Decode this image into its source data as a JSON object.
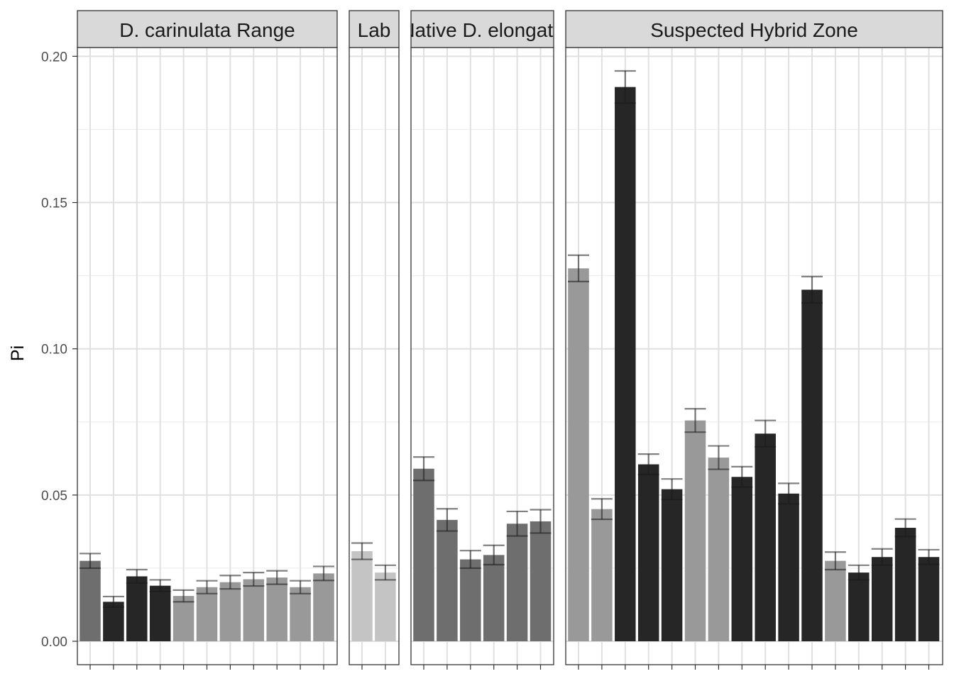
{
  "chart_data": {
    "type": "bar",
    "ylabel": "Pi",
    "ylim": [
      -0.008,
      0.203
    ],
    "yticks": [
      0.0,
      0.05,
      0.1,
      0.15,
      0.2
    ],
    "ytick_labels": [
      "0.00",
      "0.05",
      "0.10",
      "0.15",
      "0.20"
    ],
    "grid": true,
    "error_bars": true,
    "x_tick_labels_visible": false,
    "colors": {
      "black": "#262626",
      "dark_gray": "#6e6e6e",
      "medium_gray": "#999999",
      "light_gray": "#c4c4c4"
    },
    "facets": [
      {
        "label": "D. carinulata Range",
        "bars": [
          {
            "value": 0.0275,
            "err": 0.0025,
            "shade": "dark_gray"
          },
          {
            "value": 0.0135,
            "err": 0.0018,
            "shade": "black"
          },
          {
            "value": 0.0222,
            "err": 0.0023,
            "shade": "black"
          },
          {
            "value": 0.019,
            "err": 0.002,
            "shade": "black"
          },
          {
            "value": 0.0155,
            "err": 0.002,
            "shade": "medium_gray"
          },
          {
            "value": 0.0185,
            "err": 0.0022,
            "shade": "medium_gray"
          },
          {
            "value": 0.0202,
            "err": 0.0023,
            "shade": "medium_gray"
          },
          {
            "value": 0.0212,
            "err": 0.0023,
            "shade": "medium_gray"
          },
          {
            "value": 0.0218,
            "err": 0.0023,
            "shade": "medium_gray"
          },
          {
            "value": 0.0185,
            "err": 0.0022,
            "shade": "medium_gray"
          },
          {
            "value": 0.0232,
            "err": 0.0024,
            "shade": "medium_gray"
          }
        ]
      },
      {
        "label": "Lab",
        "bars": [
          {
            "value": 0.0308,
            "err": 0.0028,
            "shade": "light_gray"
          },
          {
            "value": 0.0235,
            "err": 0.0025,
            "shade": "light_gray"
          }
        ]
      },
      {
        "label": "Native D. elongata",
        "bars": [
          {
            "value": 0.059,
            "err": 0.004,
            "shade": "dark_gray"
          },
          {
            "value": 0.0415,
            "err": 0.0038,
            "shade": "dark_gray"
          },
          {
            "value": 0.028,
            "err": 0.003,
            "shade": "dark_gray"
          },
          {
            "value": 0.0295,
            "err": 0.0033,
            "shade": "dark_gray"
          },
          {
            "value": 0.0402,
            "err": 0.0042,
            "shade": "dark_gray"
          },
          {
            "value": 0.041,
            "err": 0.004,
            "shade": "dark_gray"
          }
        ]
      },
      {
        "label": "Suspected Hybrid Zone",
        "bars": [
          {
            "value": 0.1275,
            "err": 0.0045,
            "shade": "medium_gray"
          },
          {
            "value": 0.0452,
            "err": 0.0035,
            "shade": "medium_gray"
          },
          {
            "value": 0.1895,
            "err": 0.0055,
            "shade": "black"
          },
          {
            "value": 0.0605,
            "err": 0.0035,
            "shade": "black"
          },
          {
            "value": 0.052,
            "err": 0.0035,
            "shade": "black"
          },
          {
            "value": 0.0755,
            "err": 0.004,
            "shade": "medium_gray"
          },
          {
            "value": 0.0628,
            "err": 0.004,
            "shade": "medium_gray"
          },
          {
            "value": 0.0562,
            "err": 0.0035,
            "shade": "black"
          },
          {
            "value": 0.071,
            "err": 0.0045,
            "shade": "black"
          },
          {
            "value": 0.0505,
            "err": 0.0035,
            "shade": "black"
          },
          {
            "value": 0.1202,
            "err": 0.0045,
            "shade": "black"
          },
          {
            "value": 0.0275,
            "err": 0.003,
            "shade": "medium_gray"
          },
          {
            "value": 0.0235,
            "err": 0.0025,
            "shade": "black"
          },
          {
            "value": 0.0288,
            "err": 0.0028,
            "shade": "black"
          },
          {
            "value": 0.0388,
            "err": 0.003,
            "shade": "black"
          },
          {
            "value": 0.0288,
            "err": 0.0025,
            "shade": "black"
          }
        ]
      }
    ]
  }
}
